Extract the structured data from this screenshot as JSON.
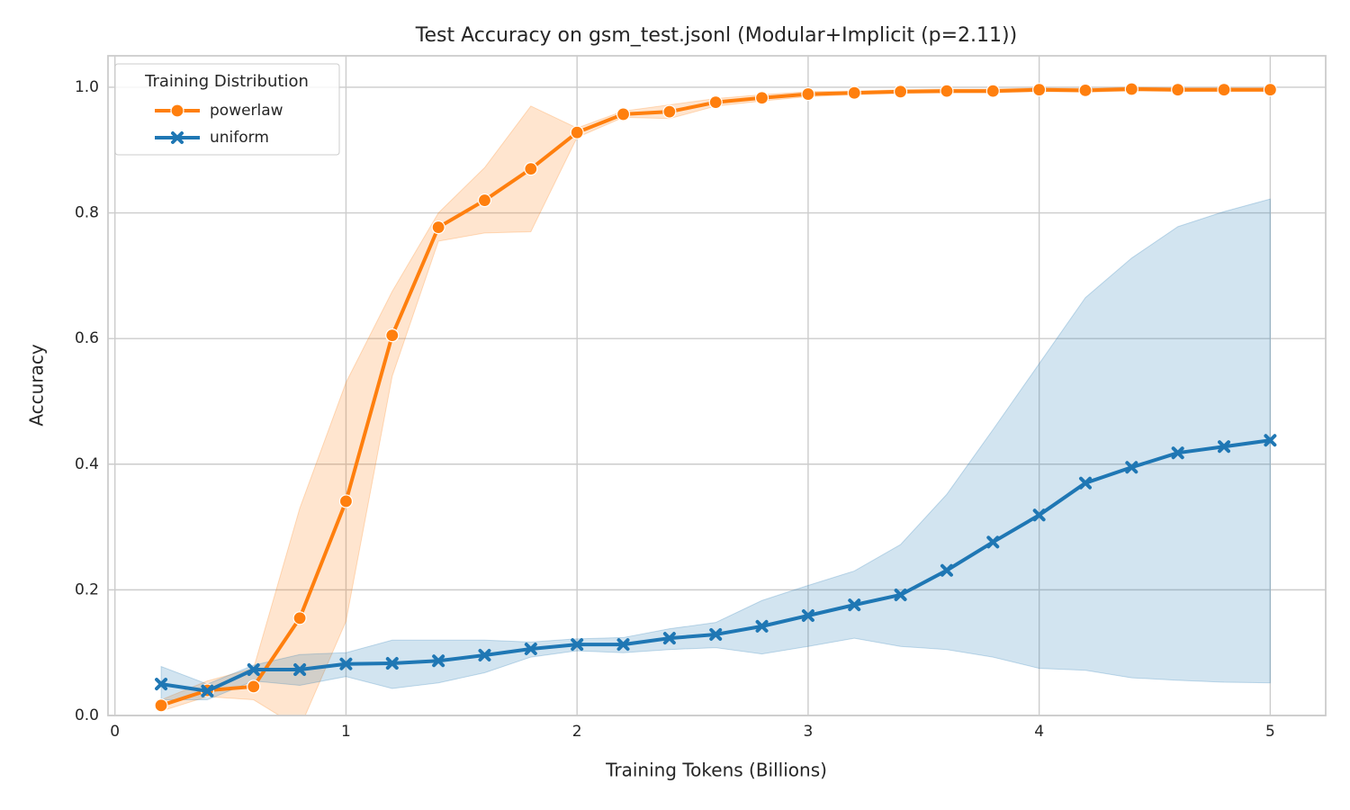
{
  "chart_data": {
    "type": "line",
    "title": "Test Accuracy on gsm_test.jsonl (Modular+Implicit (p=2.11))",
    "xlabel": "Training Tokens (Billions)",
    "ylabel": "Accuracy",
    "legend_title": "Training Distribution",
    "legend_loc": "upper left",
    "grid": true,
    "xlim": [
      -0.03,
      5.24
    ],
    "ylim": [
      0,
      1.05
    ],
    "xticks": [
      0,
      1,
      2,
      3,
      4,
      5
    ],
    "yticks": [
      {
        "value": 0,
        "label": "0.0"
      },
      0.2,
      0.4,
      0.6,
      0.8,
      {
        "value": 1,
        "label": "1.0"
      }
    ],
    "series": [
      {
        "name": "powerlaw",
        "color": "#ff7f0e",
        "marker": "circle",
        "x": [
          0.2,
          0.4,
          0.6,
          0.8,
          1.0,
          1.2,
          1.4,
          1.6,
          1.8,
          2.0,
          2.2,
          2.4,
          2.6,
          2.8,
          3.0,
          3.2,
          3.4,
          3.6,
          3.8,
          4.0,
          4.2,
          4.4,
          4.6,
          4.8,
          5.0
        ],
        "values": [
          0.016,
          0.04,
          0.046,
          0.155,
          0.341,
          0.605,
          0.777,
          0.82,
          0.87,
          0.928,
          0.957,
          0.961,
          0.976,
          0.983,
          0.989,
          0.991,
          0.993,
          0.994,
          0.994,
          0.996,
          0.995,
          0.997,
          0.996,
          0.996,
          0.996
        ],
        "lower": [
          0.007,
          0.03,
          0.025,
          -0.02,
          0.15,
          0.54,
          0.755,
          0.768,
          0.77,
          0.92,
          0.952,
          0.95,
          0.97,
          0.978,
          0.985,
          0.988,
          0.99,
          0.991,
          0.991,
          0.993,
          0.992,
          0.994,
          0.993,
          0.993,
          0.993
        ],
        "upper": [
          0.025,
          0.055,
          0.075,
          0.33,
          0.53,
          0.675,
          0.8,
          0.872,
          0.97,
          0.935,
          0.962,
          0.972,
          0.982,
          0.988,
          0.993,
          0.994,
          0.996,
          0.997,
          0.997,
          0.999,
          0.998,
          1.0,
          0.999,
          0.999,
          0.999
        ]
      },
      {
        "name": "uniform",
        "color": "#1f77b4",
        "marker": "x",
        "x": [
          0.2,
          0.4,
          0.6,
          0.8,
          1.0,
          1.2,
          1.4,
          1.6,
          1.8,
          2.0,
          2.2,
          2.4,
          2.6,
          2.8,
          3.0,
          3.2,
          3.4,
          3.6,
          3.8,
          4.0,
          4.2,
          4.4,
          4.6,
          4.8,
          5.0
        ],
        "values": [
          0.05,
          0.039,
          0.073,
          0.073,
          0.082,
          0.083,
          0.087,
          0.096,
          0.106,
          0.113,
          0.113,
          0.123,
          0.129,
          0.142,
          0.159,
          0.176,
          0.192,
          0.231,
          0.276,
          0.319,
          0.37,
          0.395,
          0.418,
          0.428,
          0.438
        ],
        "lower": [
          0.025,
          0.025,
          0.055,
          0.048,
          0.062,
          0.043,
          0.052,
          0.068,
          0.093,
          0.103,
          0.1,
          0.105,
          0.108,
          0.098,
          0.11,
          0.123,
          0.11,
          0.105,
          0.093,
          0.075,
          0.072,
          0.06,
          0.056,
          0.053,
          0.052
        ],
        "upper": [
          0.078,
          0.05,
          0.08,
          0.097,
          0.1,
          0.12,
          0.12,
          0.12,
          0.117,
          0.122,
          0.124,
          0.138,
          0.148,
          0.183,
          0.207,
          0.23,
          0.272,
          0.352,
          0.455,
          0.56,
          0.665,
          0.728,
          0.778,
          0.802,
          0.822
        ]
      }
    ]
  }
}
